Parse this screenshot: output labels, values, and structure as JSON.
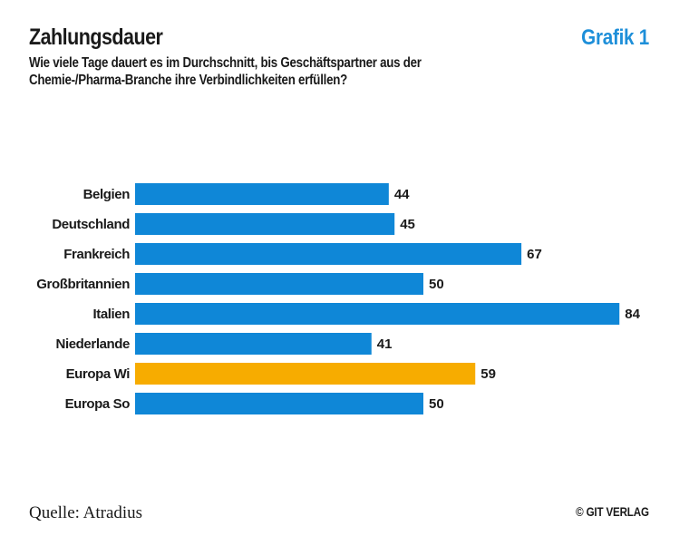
{
  "header": {
    "title": "Zahlungsdauer",
    "badge": "Grafik 1",
    "subtitle": "Wie viele Tage dauert es im Durchschnitt, bis Geschäftspartner aus der Chemie-/Pharma-Branche ihre Verbindlichkeiten erfüllen?"
  },
  "footer": {
    "source": "Quelle: Atradius",
    "credit": "© GIT VERLAG"
  },
  "colors": {
    "bar": "#0f87d7",
    "highlight": "#f7ac00",
    "badge": "#1e8fd9",
    "text": "#1a1a1a"
  },
  "chart_data": {
    "type": "bar",
    "orientation": "horizontal",
    "categories": [
      "Belgien",
      "Deutschland",
      "Frankreich",
      "Großbritannien",
      "Italien",
      "Niederlande",
      "Europa Wi",
      "Europa So"
    ],
    "values": [
      44,
      45,
      67,
      50,
      84,
      41,
      59,
      50
    ],
    "highlight_index": 6,
    "xlim": [
      0,
      84
    ],
    "grid": false,
    "legend": "none",
    "data_labels": true
  }
}
